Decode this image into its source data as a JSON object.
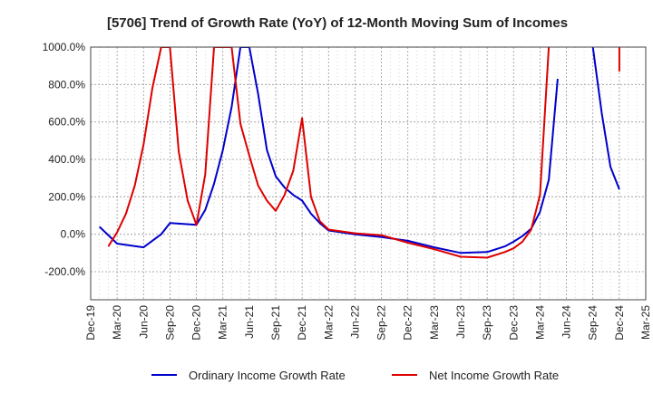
{
  "chart_data": {
    "type": "line",
    "title": "[5706]  Trend of Growth Rate (YoY) of 12-Month Moving Sum of Incomes",
    "xlabel": "",
    "ylabel": "",
    "ylim": [
      -350,
      1000
    ],
    "xlim": [
      "2019-12",
      "2025-03"
    ],
    "grid": true,
    "legend_position": "bottom",
    "y_ticks": [
      {
        "value": 1000,
        "label": "1000.0%"
      },
      {
        "value": 800,
        "label": "800.0%"
      },
      {
        "value": 600,
        "label": "600.0%"
      },
      {
        "value": 400,
        "label": "400.0%"
      },
      {
        "value": 200,
        "label": "200.0%"
      },
      {
        "value": 0,
        "label": "0.0%"
      },
      {
        "value": -200,
        "label": "-200.0%"
      }
    ],
    "x_ticks": [
      {
        "value": "2019-12",
        "label": "Dec-19"
      },
      {
        "value": "2020-03",
        "label": "Mar-20"
      },
      {
        "value": "2020-06",
        "label": "Jun-20"
      },
      {
        "value": "2020-09",
        "label": "Sep-20"
      },
      {
        "value": "2020-12",
        "label": "Dec-20"
      },
      {
        "value": "2021-03",
        "label": "Mar-21"
      },
      {
        "value": "2021-06",
        "label": "Jun-21"
      },
      {
        "value": "2021-09",
        "label": "Sep-21"
      },
      {
        "value": "2021-12",
        "label": "Dec-21"
      },
      {
        "value": "2022-03",
        "label": "Mar-22"
      },
      {
        "value": "2022-06",
        "label": "Jun-22"
      },
      {
        "value": "2022-09",
        "label": "Sep-22"
      },
      {
        "value": "2022-12",
        "label": "Dec-22"
      },
      {
        "value": "2023-03",
        "label": "Mar-23"
      },
      {
        "value": "2023-06",
        "label": "Jun-23"
      },
      {
        "value": "2023-09",
        "label": "Sep-23"
      },
      {
        "value": "2023-12",
        "label": "Dec-23"
      },
      {
        "value": "2024-03",
        "label": "Mar-24"
      },
      {
        "value": "2024-06",
        "label": "Jun-24"
      },
      {
        "value": "2024-09",
        "label": "Sep-24"
      },
      {
        "value": "2024-12",
        "label": "Dec-24"
      },
      {
        "value": "2025-03",
        "label": "Mar-25"
      }
    ],
    "series": [
      {
        "name": "Ordinary Income Growth Rate",
        "color": "#0000cc",
        "points": [
          [
            "2020-01",
            40
          ],
          [
            "2020-03",
            -50
          ],
          [
            "2020-06",
            -70
          ],
          [
            "2020-08",
            0
          ],
          [
            "2020-09",
            60
          ],
          [
            "2020-12",
            50
          ],
          [
            "2021-01",
            130
          ],
          [
            "2021-02",
            270
          ],
          [
            "2021-03",
            450
          ],
          [
            "2021-04",
            680
          ],
          [
            "2021-05",
            1000
          ],
          [
            "2021-06",
            1000
          ],
          [
            "2021-07",
            750
          ],
          [
            "2021-08",
            450
          ],
          [
            "2021-09",
            310
          ],
          [
            "2021-10",
            250
          ],
          [
            "2021-11",
            210
          ],
          [
            "2021-12",
            180
          ],
          [
            "2022-01",
            110
          ],
          [
            "2022-02",
            60
          ],
          [
            "2022-03",
            20
          ],
          [
            "2022-06",
            0
          ],
          [
            "2022-09",
            -15
          ],
          [
            "2022-12",
            -35
          ],
          [
            "2023-03",
            -70
          ],
          [
            "2023-06",
            -100
          ],
          [
            "2023-09",
            -95
          ],
          [
            "2023-11",
            -65
          ],
          [
            "2023-12",
            -40
          ],
          [
            "2024-01",
            -10
          ],
          [
            "2024-02",
            30
          ],
          [
            "2024-03",
            120
          ],
          [
            "2024-04",
            290
          ],
          [
            "2024-05",
            830
          ],
          null,
          [
            "2024-09",
            1000
          ],
          [
            "2024-10",
            650
          ],
          [
            "2024-11",
            360
          ],
          [
            "2024-12",
            240
          ]
        ]
      },
      {
        "name": "Net Income Growth Rate",
        "color": "#dd0000",
        "points": [
          [
            "2020-02",
            -65
          ],
          [
            "2020-03",
            10
          ],
          [
            "2020-04",
            110
          ],
          [
            "2020-05",
            260
          ],
          [
            "2020-06",
            480
          ],
          [
            "2020-07",
            780
          ],
          [
            "2020-08",
            1000
          ],
          [
            "2020-09",
            1000
          ],
          [
            "2020-10",
            440
          ],
          [
            "2020-11",
            180
          ],
          [
            "2020-12",
            50
          ],
          [
            "2021-01",
            320
          ],
          [
            "2021-02",
            1000
          ],
          [
            "2021-04",
            1000
          ],
          [
            "2021-05",
            590
          ],
          [
            "2021-06",
            420
          ],
          [
            "2021-07",
            260
          ],
          [
            "2021-08",
            180
          ],
          [
            "2021-09",
            125
          ],
          [
            "2021-10",
            210
          ],
          [
            "2021-11",
            340
          ],
          [
            "2021-12",
            620
          ],
          [
            "2022-01",
            200
          ],
          [
            "2022-02",
            70
          ],
          [
            "2022-03",
            25
          ],
          [
            "2022-06",
            5
          ],
          [
            "2022-09",
            -5
          ],
          [
            "2022-12",
            -45
          ],
          [
            "2023-03",
            -80
          ],
          [
            "2023-06",
            -120
          ],
          [
            "2023-09",
            -125
          ],
          [
            "2023-11",
            -95
          ],
          [
            "2023-12",
            -75
          ],
          [
            "2024-01",
            -40
          ],
          [
            "2024-02",
            25
          ],
          [
            "2024-03",
            210
          ],
          [
            "2024-04",
            1000
          ],
          null,
          [
            "2024-12",
            1000
          ],
          [
            "2024-12",
            870
          ]
        ]
      }
    ]
  }
}
